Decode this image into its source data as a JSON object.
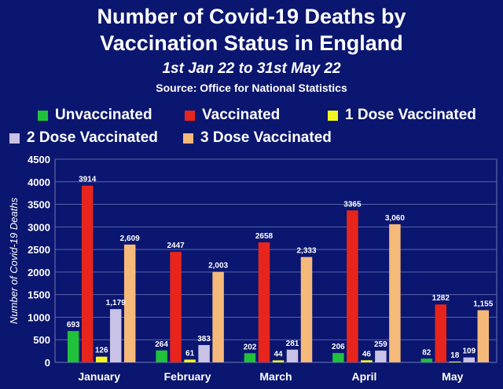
{
  "header": {
    "title_line1": "Number of Covid-19 Deaths by",
    "title_line2": "Vaccination Status in England",
    "subtitle": "1st Jan 22 to 31st May 22",
    "source": "Source: Office for National Statistics"
  },
  "chart_data": {
    "type": "bar",
    "title": "Number of Covid-19 Deaths by Vaccination Status in England",
    "subtitle": "1st Jan 22 to 31st May 22",
    "source": "Source: Office for National Statistics",
    "xlabel": "",
    "ylabel": "Number of Covid-19 Deaths",
    "ylim": [
      0,
      4500
    ],
    "yticks": [
      0,
      500,
      1000,
      1500,
      2000,
      2500,
      3000,
      3500,
      4000,
      4500
    ],
    "grid": true,
    "legend_position": "top",
    "categories": [
      "January",
      "February",
      "March",
      "April",
      "May"
    ],
    "series": [
      {
        "name": "Unvaccinated",
        "color": "#1fc23a",
        "values": [
          693,
          264,
          202,
          206,
          82
        ],
        "labels": [
          "693",
          "264",
          "202",
          "206",
          "82"
        ]
      },
      {
        "name": "Vaccinated",
        "color": "#e8251c",
        "values": [
          3914,
          2447,
          2658,
          3365,
          1282
        ],
        "labels": [
          "3914",
          "2447",
          "2658",
          "3365",
          "1282"
        ]
      },
      {
        "name": "1 Dose Vaccinated",
        "color": "#f3f520",
        "values": [
          126,
          61,
          44,
          46,
          18
        ],
        "labels": [
          "126",
          "61",
          "44",
          "46",
          "18"
        ]
      },
      {
        "name": "2 Dose Vaccinated",
        "color": "#c9c2e6",
        "values": [
          1179,
          383,
          281,
          259,
          109
        ],
        "labels": [
          "1,179",
          "383",
          "281",
          "259",
          "109"
        ]
      },
      {
        "name": "3 Dose Vaccinated",
        "color": "#f5b97a",
        "values": [
          2609,
          2003,
          2333,
          3060,
          1155
        ],
        "labels": [
          "2,609",
          "2,003",
          "2,333",
          "3,060",
          "1,155"
        ]
      }
    ]
  }
}
